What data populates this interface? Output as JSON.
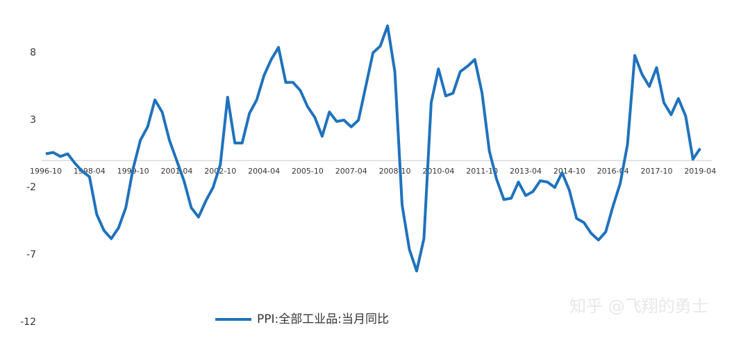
{
  "chart_data": {
    "type": "line",
    "categories": [
      "1996-10",
      null,
      null,
      null,
      null,
      null,
      "1998-04",
      null,
      null,
      null,
      null,
      null,
      "1999-10",
      null,
      null,
      null,
      null,
      null,
      "2001-04",
      null,
      null,
      null,
      null,
      null,
      "2002-10",
      null,
      null,
      null,
      null,
      null,
      "2004-04",
      null,
      null,
      null,
      null,
      null,
      "2005-10",
      null,
      null,
      null,
      null,
      null,
      "2007-04",
      null,
      null,
      null,
      null,
      null,
      "2008-10",
      null,
      null,
      null,
      null,
      null,
      "2010-04",
      null,
      null,
      null,
      null,
      null,
      "2011-10",
      null,
      null,
      null,
      null,
      null,
      "2013-04",
      null,
      null,
      null,
      null,
      null,
      "2014-10",
      null,
      null,
      null,
      null,
      null,
      "2016-04",
      null,
      null,
      null,
      null,
      null,
      "2017-10",
      null,
      null,
      null,
      null,
      null,
      "2019-04"
    ],
    "series": [
      {
        "name": "PPI:全部工业品:当月同比",
        "color": "#1f72bd",
        "values": [
          0.5,
          0.6,
          0.3,
          0.5,
          -0.2,
          -0.8,
          -1.2,
          -4,
          -5.2,
          -5.8,
          -5,
          -3.5,
          -0.6,
          1.5,
          2.5,
          4.5,
          3.6,
          1.5,
          0,
          -1.5,
          -3.5,
          -4.2,
          -3,
          -2,
          -0.3,
          4.7,
          1.3,
          1.3,
          3.5,
          4.5,
          6.3,
          7.5,
          8.4,
          5.8,
          5.8,
          5.2,
          4,
          3.2,
          1.8,
          3.6,
          2.9,
          3.0,
          2.5,
          3.0,
          5.5,
          8.0,
          8.5,
          10.0,
          6.6,
          -3.3,
          -6.6,
          -8.2,
          -5.8,
          4.3,
          6.8,
          4.8,
          5.0,
          6.6,
          7.0,
          7.5,
          5.0,
          0.7,
          -1.4,
          -2.9,
          -2.8,
          -1.6,
          -2.6,
          -2.3,
          -1.5,
          -1.6,
          -2.0,
          -0.9,
          -2.2,
          -4.3,
          -4.6,
          -5.4,
          -5.9,
          -5.3,
          -3.4,
          -1.7,
          1.2,
          7.8,
          6.4,
          5.5,
          6.9,
          4.3,
          3.4,
          4.6,
          3.3,
          0.1,
          0.9
        ]
      }
    ],
    "ylim": [
      -12,
      10.5
    ],
    "yticks": [
      -12,
      -7,
      -2,
      3,
      8
    ],
    "watermark": "知乎 @飞翔的勇士"
  }
}
